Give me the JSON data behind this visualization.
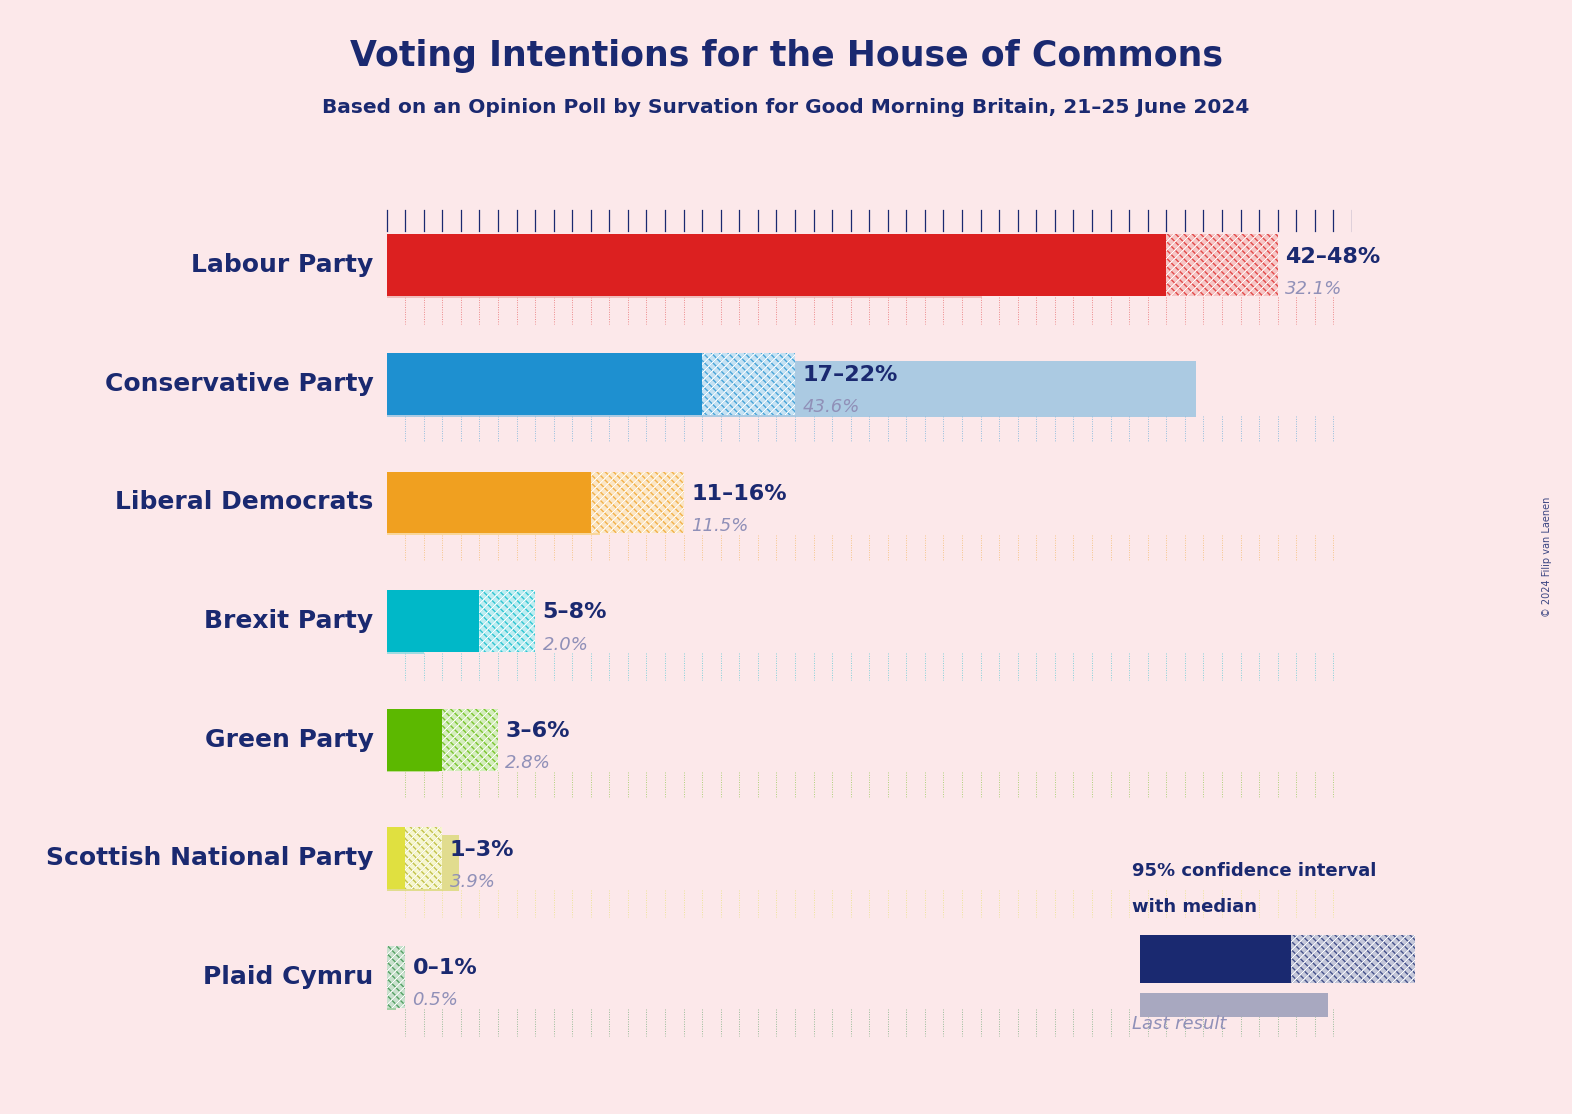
{
  "title": "Voting Intentions for the House of Commons",
  "subtitle": "Based on an Opinion Poll by Survation for Good Morning Britain, 21–25 June 2024",
  "copyright": "© 2024 Filip van Laenen",
  "background_color": "#fce8ea",
  "title_color": "#1a2970",
  "parties": [
    {
      "name": "Labour Party",
      "ci_low": 42,
      "ci_high": 48,
      "last_result": 32.1,
      "label": "42–48%",
      "last_label": "32.1%",
      "solid_color": "#dc2020",
      "hatch_fg": "#dc2020",
      "last_color": "#ebb0b0"
    },
    {
      "name": "Conservative Party",
      "ci_low": 17,
      "ci_high": 22,
      "last_result": 43.6,
      "label": "17–22%",
      "last_label": "43.6%",
      "solid_color": "#1e90d0",
      "hatch_fg": "#1e90d0",
      "last_color": "#90c0e0"
    },
    {
      "name": "Liberal Democrats",
      "ci_low": 11,
      "ci_high": 16,
      "last_result": 11.5,
      "label": "11–16%",
      "last_label": "11.5%",
      "solid_color": "#f0a020",
      "hatch_fg": "#f0a020",
      "last_color": "#f8d080"
    },
    {
      "name": "Brexit Party",
      "ci_low": 5,
      "ci_high": 8,
      "last_result": 2.0,
      "label": "5–8%",
      "last_label": "2.0%",
      "solid_color": "#00b8c8",
      "hatch_fg": "#00b8c8",
      "last_color": "#80d8e0"
    },
    {
      "name": "Green Party",
      "ci_low": 3,
      "ci_high": 6,
      "last_result": 2.8,
      "label": "3–6%",
      "last_label": "2.8%",
      "solid_color": "#5cb800",
      "hatch_fg": "#5cb800",
      "last_color": "#a8d870"
    },
    {
      "name": "Scottish National Party",
      "ci_low": 1,
      "ci_high": 3,
      "last_result": 3.9,
      "label": "1–3%",
      "last_label": "3.9%",
      "solid_color": "#e0e040",
      "hatch_fg": "#b0b020",
      "last_color": "#d8d870"
    },
    {
      "name": "Plaid Cymru",
      "ci_low": 0,
      "ci_high": 1,
      "last_result": 0.5,
      "label": "0–1%",
      "last_label": "0.5%",
      "solid_color": "#2d8b40",
      "hatch_fg": "#2d8b40",
      "last_color": "#88c890"
    }
  ],
  "x_max": 52,
  "bar_height": 0.52,
  "legend_label1": "95% confidence interval",
  "legend_label2": "with median",
  "legend_label3": "Last result"
}
